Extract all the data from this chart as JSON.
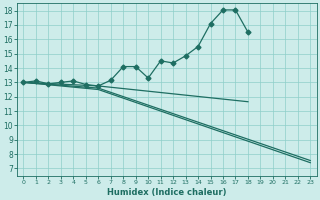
{
  "bg_color": "#cdecea",
  "grid_color": "#8ecfca",
  "line_color": "#1e6e62",
  "xlabel": "Humidex (Indice chaleur)",
  "xlim": [
    -0.5,
    23.5
  ],
  "ylim": [
    6.5,
    18.5
  ],
  "xticks": [
    0,
    1,
    2,
    3,
    4,
    5,
    6,
    7,
    8,
    9,
    10,
    11,
    12,
    13,
    14,
    15,
    16,
    17,
    18,
    19,
    20,
    21,
    22,
    23
  ],
  "yticks": [
    7,
    8,
    9,
    10,
    11,
    12,
    13,
    14,
    15,
    16,
    17,
    18
  ],
  "curve1_x": [
    0,
    1,
    2,
    3,
    4,
    5,
    6,
    7,
    8,
    9,
    10,
    11,
    12,
    13,
    14,
    15,
    16,
    17,
    18
  ],
  "curve1_y": [
    13,
    13.1,
    12.9,
    13.0,
    13.1,
    12.85,
    12.75,
    13.15,
    14.1,
    14.1,
    13.3,
    14.5,
    14.35,
    14.85,
    15.5,
    17.1,
    18.05,
    18.05,
    16.5
  ],
  "curve1_markers": [
    0,
    1,
    2,
    3,
    4,
    5,
    6,
    7,
    8,
    9,
    10,
    11,
    12,
    13,
    14,
    15,
    16,
    17,
    18
  ],
  "curve2_x": [
    0,
    6,
    18
  ],
  "curve2_y": [
    13.0,
    12.75,
    11.65
  ],
  "curve3_x": [
    0,
    6,
    23
  ],
  "curve3_y": [
    13.0,
    12.5,
    7.4
  ],
  "curve4_x": [
    0,
    6,
    23
  ],
  "curve4_y": [
    13.0,
    12.6,
    7.55
  ]
}
